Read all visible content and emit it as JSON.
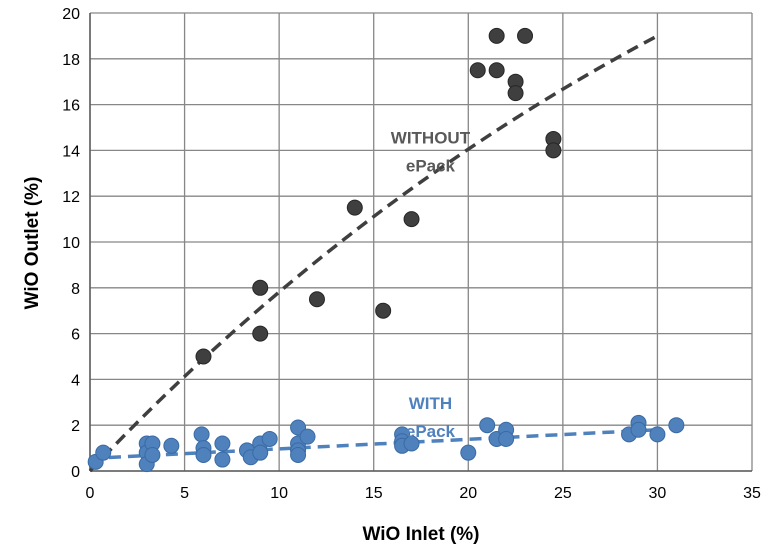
{
  "chart_data": {
    "type": "scatter",
    "title": "",
    "xlabel": "WiO Inlet (%)",
    "ylabel": "WiO Outlet (%)",
    "xlim": [
      0,
      35
    ],
    "ylim": [
      0,
      20
    ],
    "x_ticks": [
      0,
      5,
      10,
      15,
      20,
      25,
      30,
      35
    ],
    "y_ticks": [
      0,
      2,
      4,
      6,
      8,
      10,
      12,
      14,
      16,
      18,
      20
    ],
    "grid": true,
    "legend": "none",
    "series": [
      {
        "color": "#3f3f3f",
        "points": [
          [
            6,
            5
          ],
          [
            9,
            8
          ],
          [
            9,
            6
          ],
          [
            12,
            7.5
          ],
          [
            14,
            11.5
          ],
          [
            15.5,
            7
          ],
          [
            17,
            11
          ],
          [
            20.5,
            17.5
          ],
          [
            21.5,
            17.5
          ],
          [
            21.5,
            19
          ],
          [
            23,
            19
          ],
          [
            22.5,
            17
          ],
          [
            22.5,
            16.5
          ],
          [
            24.5,
            14.5
          ],
          [
            24.5,
            14
          ]
        ],
        "trend": {
          "style": "dashed",
          "from": [
            0,
            0
          ],
          "to": [
            30,
            19
          ],
          "curvature": "concave"
        }
      },
      {
        "color": "#4f81bd",
        "points": [
          [
            0.3,
            0.4
          ],
          [
            0.7,
            0.8
          ],
          [
            3,
            1.2
          ],
          [
            3,
            0.8
          ],
          [
            3,
            0.3
          ],
          [
            3.3,
            1.2
          ],
          [
            3.3,
            0.7
          ],
          [
            4.3,
            1.1
          ],
          [
            5.9,
            1.6
          ],
          [
            6,
            1
          ],
          [
            6,
            0.7
          ],
          [
            7,
            1.2
          ],
          [
            7,
            0.5
          ],
          [
            8.3,
            0.9
          ],
          [
            8.5,
            0.6
          ],
          [
            9,
            1.2
          ],
          [
            9,
            0.8
          ],
          [
            9.5,
            1.4
          ],
          [
            11,
            1.9
          ],
          [
            11,
            1.2
          ],
          [
            11,
            0.9
          ],
          [
            11,
            0.7
          ],
          [
            11.5,
            1.5
          ],
          [
            16.5,
            1.6
          ],
          [
            16.5,
            1.3
          ],
          [
            16.5,
            1.1
          ],
          [
            17,
            1.2
          ],
          [
            20,
            0.8
          ],
          [
            21,
            2
          ],
          [
            21.5,
            1.4
          ],
          [
            22,
            1.8
          ],
          [
            22,
            1.4
          ],
          [
            28.5,
            1.6
          ],
          [
            29,
            2.1
          ],
          [
            29,
            1.8
          ],
          [
            30,
            1.6
          ],
          [
            31,
            2
          ]
        ],
        "trend": {
          "style": "dashed",
          "from": [
            0,
            0.55
          ],
          "to": [
            30,
            1.8
          ]
        }
      }
    ],
    "annotations": [
      {
        "lines": [
          "WITHOUT",
          "ePack"
        ],
        "color": "#595959",
        "at": [
          18,
          14.3
        ]
      },
      {
        "lines": [
          "WITH",
          "ePack"
        ],
        "color": "#4f81bd",
        "at": [
          18,
          2.7
        ]
      }
    ]
  }
}
